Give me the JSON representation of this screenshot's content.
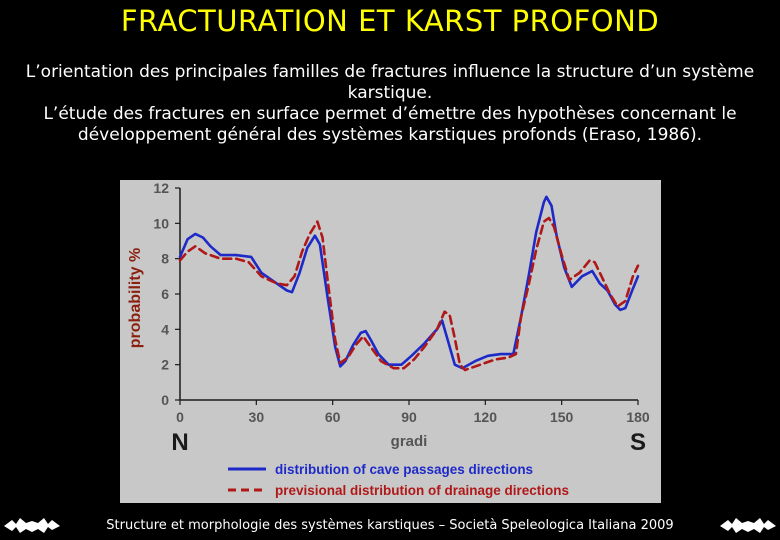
{
  "slide": {
    "title": "FRACTURATION ET KARST PROFOND",
    "paragraph1": "L’orientation des principales familles de fractures influence la structure d’un système karstique.",
    "paragraph2": "L’étude des fractures en surface permet d’émettre des hypothèses concernant le développement général des systèmes karstiques profonds (Eraso, 1986).",
    "footer": "Structure et morphologie des systèmes karstiques – Società Speleologica Italiana 2009",
    "title_color": "#ffff00"
  },
  "chart_data": {
    "type": "line",
    "ylabel": "probability %",
    "xlabel": "gradi",
    "xlim": [
      0,
      180
    ],
    "ylim": [
      0,
      12
    ],
    "x_ticks": [
      "0",
      "30",
      "60",
      "90",
      "120",
      "150",
      "180"
    ],
    "y_ticks": [
      "0",
      "2",
      "4",
      "6",
      "8",
      "10",
      "12"
    ],
    "x_end_labels": {
      "left": "N",
      "right": "S"
    },
    "legend_position": "bottom",
    "grid": false,
    "series": [
      {
        "name": "distribution of cave passages directions",
        "color": "#1e2ac8",
        "dash": "solid",
        "points": [
          [
            0,
            8.1
          ],
          [
            3,
            9.1
          ],
          [
            6,
            9.4
          ],
          [
            9,
            9.2
          ],
          [
            12,
            8.7
          ],
          [
            16,
            8.2
          ],
          [
            22,
            8.2
          ],
          [
            28,
            8.1
          ],
          [
            32,
            7.2
          ],
          [
            38,
            6.6
          ],
          [
            42,
            6.2
          ],
          [
            44,
            6.1
          ],
          [
            47,
            7.2
          ],
          [
            50,
            8.6
          ],
          [
            53,
            9.3
          ],
          [
            55,
            8.8
          ],
          [
            58,
            5.8
          ],
          [
            61,
            3.0
          ],
          [
            63,
            1.9
          ],
          [
            65,
            2.2
          ],
          [
            68,
            3.1
          ],
          [
            71,
            3.8
          ],
          [
            73,
            3.9
          ],
          [
            75,
            3.4
          ],
          [
            78,
            2.6
          ],
          [
            82,
            2.0
          ],
          [
            87,
            2.0
          ],
          [
            91,
            2.5
          ],
          [
            96,
            3.2
          ],
          [
            101,
            4.0
          ],
          [
            103,
            4.5
          ],
          [
            105,
            3.5
          ],
          [
            108,
            2.0
          ],
          [
            111,
            1.8
          ],
          [
            116,
            2.2
          ],
          [
            121,
            2.5
          ],
          [
            126,
            2.6
          ],
          [
            131,
            2.6
          ],
          [
            134,
            4.7
          ],
          [
            137,
            7.0
          ],
          [
            140,
            9.5
          ],
          [
            143,
            11.2
          ],
          [
            144,
            11.5
          ],
          [
            146,
            11.0
          ],
          [
            148,
            9.3
          ],
          [
            151,
            7.5
          ],
          [
            154,
            6.4
          ],
          [
            158,
            7.0
          ],
          [
            162,
            7.3
          ],
          [
            165,
            6.6
          ],
          [
            168,
            6.2
          ],
          [
            171,
            5.4
          ],
          [
            173,
            5.1
          ],
          [
            175,
            5.2
          ],
          [
            178,
            6.3
          ],
          [
            180,
            7.0
          ]
        ]
      },
      {
        "name": "previsional distribution of drainage directions",
        "color": "#b01818",
        "dash": "dashed",
        "points": [
          [
            0,
            7.9
          ],
          [
            3,
            8.4
          ],
          [
            6,
            8.7
          ],
          [
            10,
            8.3
          ],
          [
            16,
            8.0
          ],
          [
            22,
            8.0
          ],
          [
            27,
            7.8
          ],
          [
            32,
            7.0
          ],
          [
            38,
            6.6
          ],
          [
            42,
            6.5
          ],
          [
            45,
            7.0
          ],
          [
            48,
            8.4
          ],
          [
            51,
            9.4
          ],
          [
            54,
            10.1
          ],
          [
            56,
            9.2
          ],
          [
            58,
            6.8
          ],
          [
            61,
            3.4
          ],
          [
            63,
            2.1
          ],
          [
            66,
            2.4
          ],
          [
            69,
            3.1
          ],
          [
            72,
            3.6
          ],
          [
            75,
            3.0
          ],
          [
            79,
            2.2
          ],
          [
            84,
            1.8
          ],
          [
            88,
            1.8
          ],
          [
            92,
            2.3
          ],
          [
            96,
            3.0
          ],
          [
            101,
            4.0
          ],
          [
            104,
            5.0
          ],
          [
            106,
            4.8
          ],
          [
            108,
            3.5
          ],
          [
            110,
            2.0
          ],
          [
            112,
            1.7
          ],
          [
            118,
            2.0
          ],
          [
            124,
            2.3
          ],
          [
            129,
            2.4
          ],
          [
            132,
            2.6
          ],
          [
            134,
            4.7
          ],
          [
            137,
            6.5
          ],
          [
            140,
            8.5
          ],
          [
            143,
            10.1
          ],
          [
            145,
            10.3
          ],
          [
            147,
            9.8
          ],
          [
            150,
            8.2
          ],
          [
            153,
            6.8
          ],
          [
            157,
            7.2
          ],
          [
            161,
            7.9
          ],
          [
            163,
            7.8
          ],
          [
            166,
            6.9
          ],
          [
            169,
            6.0
          ],
          [
            172,
            5.3
          ],
          [
            175,
            5.6
          ],
          [
            178,
            7.0
          ],
          [
            180,
            7.6
          ]
        ]
      }
    ],
    "axis_color": "#1a1a1a",
    "label_color": "#555555",
    "ylabel_color": "#8b2010"
  }
}
